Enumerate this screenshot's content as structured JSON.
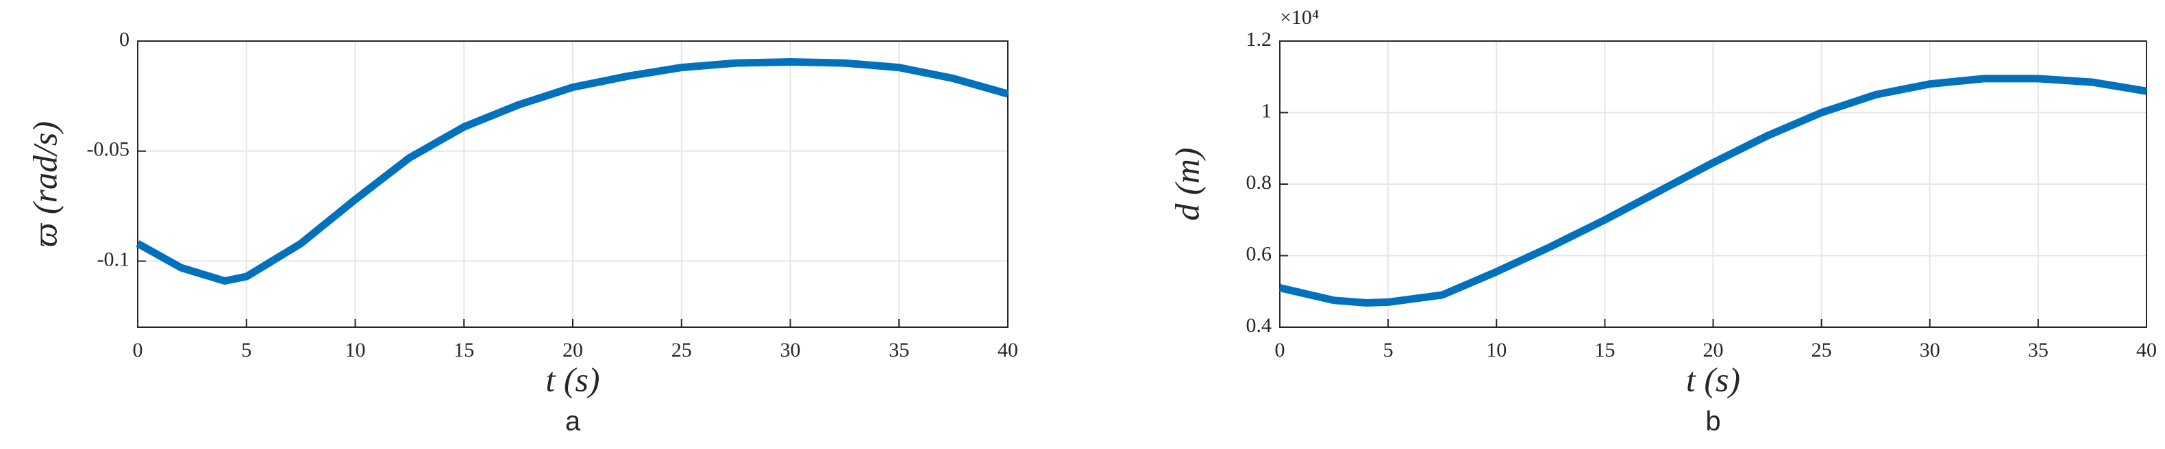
{
  "chart_data": [
    {
      "type": "line",
      "subplot_label": "a",
      "x_label": "t (s)",
      "y_label": "ϖ (rad/s)",
      "x": [
        0,
        2,
        4,
        5,
        7.5,
        10,
        12.5,
        15,
        17.5,
        20,
        22.5,
        25,
        27.5,
        30,
        32.5,
        35,
        37.5,
        40
      ],
      "series": [
        {
          "name": "ϖ",
          "color": "#0072bd",
          "values": [
            -0.092,
            -0.103,
            -0.109,
            -0.107,
            -0.092,
            -0.072,
            -0.053,
            -0.039,
            -0.029,
            -0.021,
            -0.016,
            -0.012,
            -0.01,
            -0.0095,
            -0.01,
            -0.012,
            -0.017,
            -0.024
          ]
        }
      ],
      "xlim": [
        0,
        40
      ],
      "xticks": [
        0,
        5,
        10,
        15,
        20,
        25,
        30,
        35,
        40
      ],
      "ylim": [
        -0.13,
        0
      ],
      "yticks": [
        -0.1,
        -0.05,
        0
      ],
      "grid": true
    },
    {
      "type": "line",
      "subplot_label": "b",
      "x_label": "t (s)",
      "y_label": "d (m)",
      "y_multiplier": "×10⁴",
      "x": [
        0,
        2.5,
        4,
        5,
        7.5,
        10,
        12.5,
        15,
        17.5,
        20,
        22.5,
        25,
        27.5,
        30,
        32.5,
        35,
        37.5,
        40
      ],
      "series": [
        {
          "name": "d",
          "color": "#0072bd",
          "values": [
            0.51,
            0.475,
            0.468,
            0.47,
            0.49,
            0.555,
            0.625,
            0.7,
            0.78,
            0.86,
            0.935,
            1.0,
            1.05,
            1.08,
            1.095,
            1.095,
            1.085,
            1.06
          ]
        }
      ],
      "xlim": [
        0,
        40
      ],
      "xticks": [
        0,
        5,
        10,
        15,
        20,
        25,
        30,
        35,
        40
      ],
      "ylim": [
        0.4,
        1.2
      ],
      "yticks": [
        0.4,
        0.6,
        0.8,
        1,
        1.2
      ],
      "grid": true
    }
  ]
}
